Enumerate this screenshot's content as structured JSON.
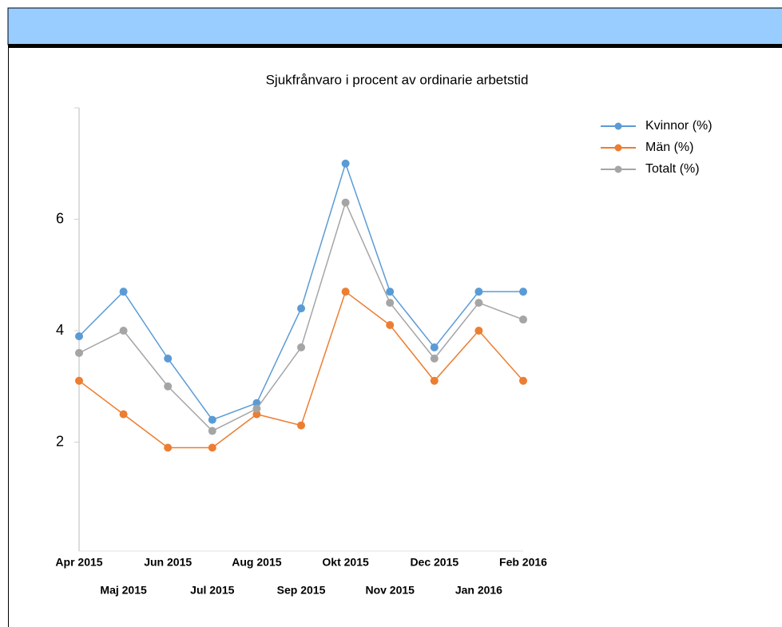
{
  "chart_data": {
    "type": "line",
    "title": "Sjukfrånvaro i procent av ordinarie arbetstid",
    "categories": [
      "Apr 2015",
      "Maj 2015",
      "Jun 2015",
      "Jul 2015",
      "Aug 2015",
      "Sep 2015",
      "Okt 2015",
      "Nov 2015",
      "Dec 2015",
      "Jan 2016",
      "Feb 2016"
    ],
    "series": [
      {
        "name": "Kvinnor (%)",
        "color": "#5b9bd5",
        "values": [
          3.9,
          4.7,
          3.5,
          2.4,
          2.7,
          4.4,
          7.0,
          4.7,
          3.7,
          4.7,
          4.7
        ]
      },
      {
        "name": "Män (%)",
        "color": "#ed7d31",
        "values": [
          3.1,
          2.5,
          1.9,
          1.9,
          2.5,
          2.3,
          4.7,
          4.1,
          3.1,
          4.0,
          3.1
        ]
      },
      {
        "name": "Totalt (%)",
        "color": "#a5a5a5",
        "values": [
          3.6,
          4.0,
          3.0,
          2.2,
          2.6,
          3.7,
          6.3,
          4.5,
          3.5,
          4.5,
          4.2
        ]
      }
    ],
    "ylim": [
      0,
      8
    ],
    "yticks": [
      2,
      4,
      6
    ],
    "legend": "top-right"
  }
}
